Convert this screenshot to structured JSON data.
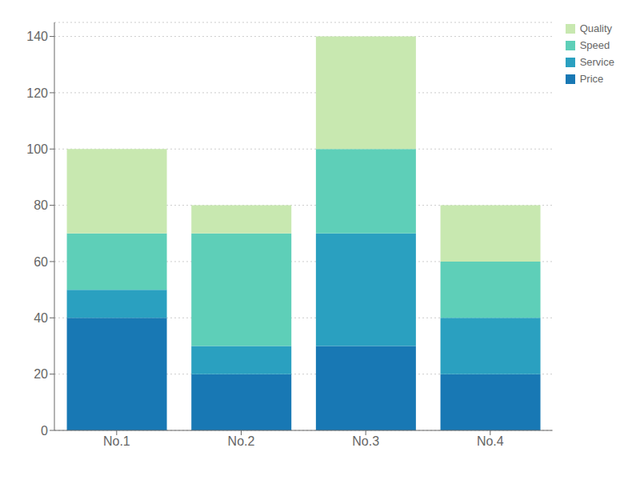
{
  "chart_data": {
    "type": "bar",
    "stacked": true,
    "categories": [
      "No.1",
      "No.2",
      "No.3",
      "No.4"
    ],
    "series": [
      {
        "name": "Price",
        "color": "#1878b4",
        "values": [
          40,
          20,
          30,
          20
        ]
      },
      {
        "name": "Service",
        "color": "#2aa0c0",
        "values": [
          10,
          10,
          40,
          20
        ]
      },
      {
        "name": "Speed",
        "color": "#5ecfb8",
        "values": [
          20,
          40,
          30,
          20
        ]
      },
      {
        "name": "Quality",
        "color": "#c8e8b0",
        "values": [
          30,
          10,
          40,
          20
        ]
      }
    ],
    "ylim": [
      0,
      145
    ],
    "yticks": [
      0,
      20,
      40,
      60,
      80,
      100,
      120,
      140
    ],
    "grid": true,
    "legend": "upper right"
  }
}
